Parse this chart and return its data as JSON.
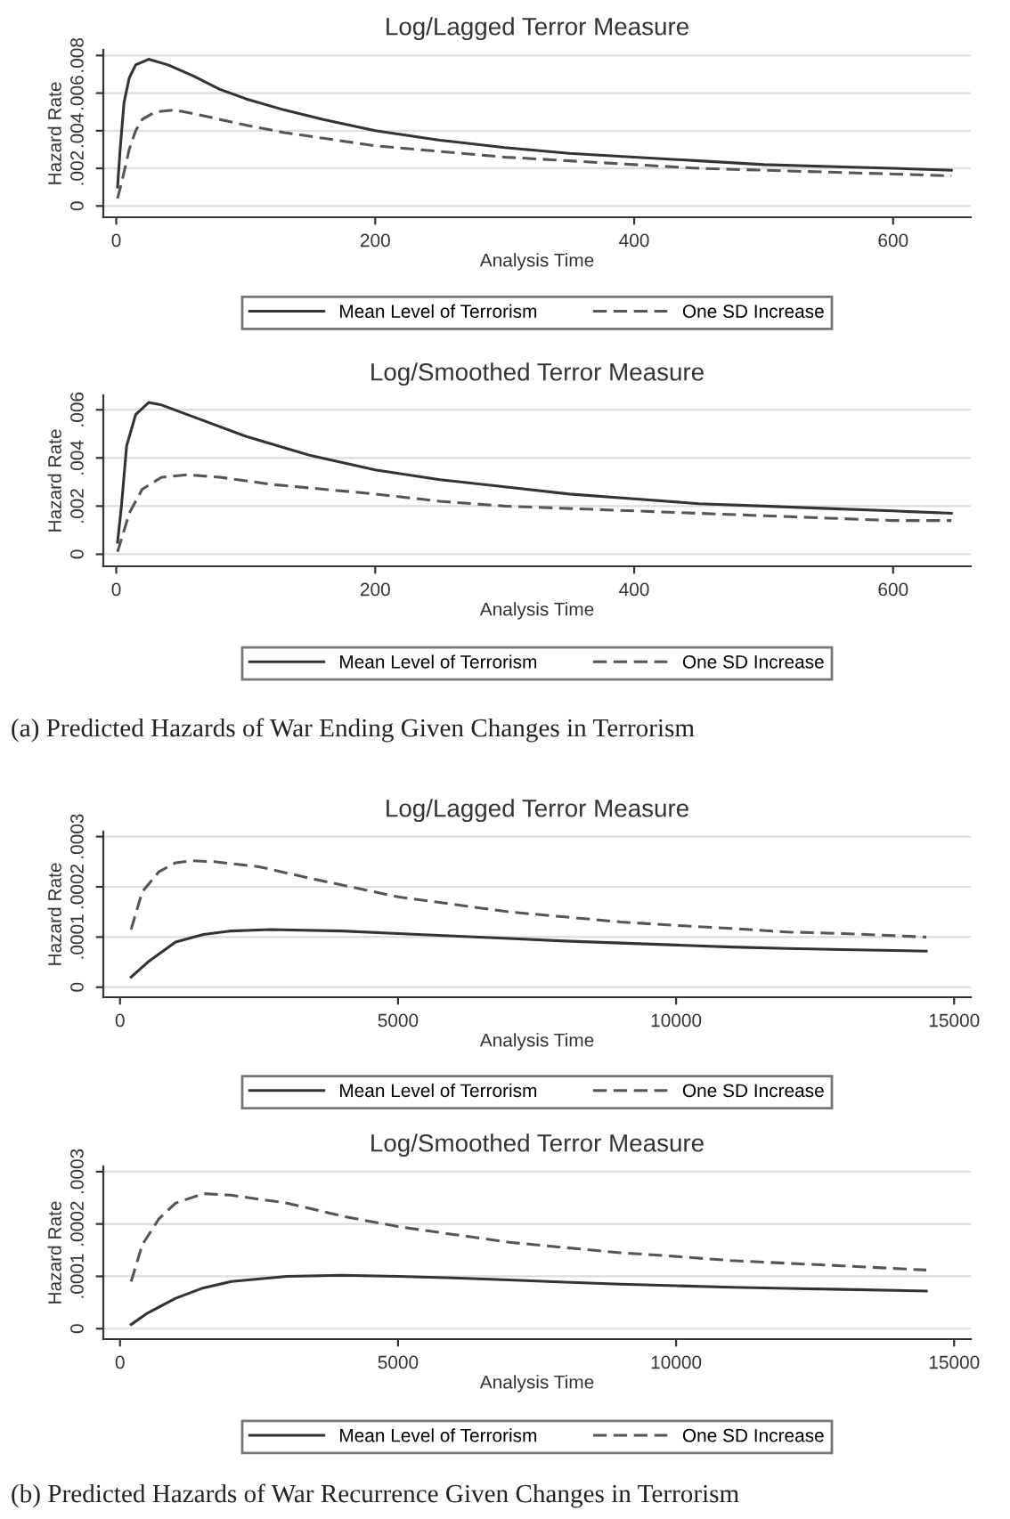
{
  "chart_data": [
    {
      "type": "line",
      "title": "Log/Lagged Terror Measure",
      "xlabel": "Analysis Time",
      "ylabel": "Hazard Rate",
      "xlim": [
        -10,
        660
      ],
      "xticks": [
        0,
        200,
        400,
        600
      ],
      "ylim": [
        -0.0006,
        0.0083
      ],
      "yticks": [
        0,
        {
          "value": 0.002,
          "label": ".002"
        },
        {
          "value": 0.004,
          "label": ".004"
        },
        {
          "value": 0.006,
          "label": ".006"
        },
        {
          "value": 0.008,
          "label": ".008"
        }
      ],
      "grid": "y",
      "legend": "bottom",
      "series": [
        {
          "name": "Mean Level of Terrorism",
          "color": "#333333",
          "line_style": "solid",
          "x": [
            1,
            3,
            6,
            10,
            15,
            25,
            40,
            60,
            80,
            100,
            130,
            160,
            200,
            250,
            300,
            350,
            400,
            450,
            500,
            550,
            600,
            645
          ],
          "values": [
            0.001,
            0.003,
            0.0055,
            0.0068,
            0.0075,
            0.0078,
            0.0075,
            0.0069,
            0.0062,
            0.0057,
            0.0051,
            0.0046,
            0.004,
            0.0035,
            0.0031,
            0.0028,
            0.0026,
            0.0024,
            0.0022,
            0.0021,
            0.002,
            0.0019
          ]
        },
        {
          "name": "One SD Increase",
          "color": "#555555",
          "line_style": "dashed",
          "x": [
            1,
            5,
            10,
            15,
            20,
            30,
            45,
            60,
            80,
            100,
            130,
            160,
            200,
            250,
            300,
            350,
            400,
            450,
            500,
            550,
            600,
            645
          ],
          "values": [
            0.0004,
            0.0015,
            0.003,
            0.004,
            0.0046,
            0.005,
            0.0051,
            0.0049,
            0.0046,
            0.0043,
            0.0039,
            0.0036,
            0.0032,
            0.0029,
            0.0026,
            0.0024,
            0.0022,
            0.002,
            0.0019,
            0.0018,
            0.0017,
            0.0016
          ]
        }
      ]
    },
    {
      "type": "line",
      "title": "Log/Smoothed Terror Measure",
      "xlabel": "Analysis Time",
      "ylabel": "Hazard Rate",
      "xlim": [
        -10,
        660
      ],
      "xticks": [
        0,
        200,
        400,
        600
      ],
      "ylim": [
        -0.0005,
        0.0066
      ],
      "yticks": [
        0,
        {
          "value": 0.002,
          "label": ".002"
        },
        {
          "value": 0.004,
          "label": ".004"
        },
        {
          "value": 0.006,
          "label": ".006"
        }
      ],
      "grid": "y",
      "legend": "bottom",
      "annotations": [
        "(a) Predicted Hazards of War Ending Given Changes in Terrorism"
      ],
      "series": [
        {
          "name": "Mean Level of Terrorism",
          "color": "#333333",
          "line_style": "solid",
          "x": [
            1,
            4,
            8,
            15,
            25,
            35,
            60,
            100,
            150,
            200,
            250,
            300,
            350,
            400,
            450,
            500,
            550,
            600,
            645
          ],
          "values": [
            0.0005,
            0.002,
            0.0045,
            0.0058,
            0.0063,
            0.0062,
            0.0057,
            0.0049,
            0.0041,
            0.0035,
            0.0031,
            0.0028,
            0.0025,
            0.0023,
            0.0021,
            0.002,
            0.0019,
            0.0018,
            0.0017
          ]
        },
        {
          "name": "One SD Increase",
          "color": "#555555",
          "line_style": "dashed",
          "x": [
            1,
            5,
            10,
            20,
            35,
            55,
            80,
            120,
            160,
            200,
            250,
            300,
            350,
            400,
            450,
            500,
            550,
            600,
            645
          ],
          "values": [
            0.0001,
            0.0008,
            0.0017,
            0.0027,
            0.0032,
            0.0033,
            0.0032,
            0.0029,
            0.0027,
            0.0025,
            0.0022,
            0.002,
            0.0019,
            0.0018,
            0.0017,
            0.0016,
            0.0015,
            0.0014,
            0.0014
          ]
        }
      ]
    },
    {
      "type": "line",
      "title": "Log/Lagged Terror Measure",
      "xlabel": "Analysis Time",
      "ylabel": "Hazard Rate",
      "xlim": [
        -300,
        15300
      ],
      "xticks": [
        0,
        5000,
        10000,
        15000
      ],
      "ylim": [
        -2e-05,
        0.00031
      ],
      "yticks": [
        0,
        {
          "value": 0.0001,
          "label": ".0001"
        },
        {
          "value": 0.0002,
          "label": ".0002"
        },
        {
          "value": 0.0003,
          "label": ".0003"
        }
      ],
      "grid": "y",
      "legend": "bottom",
      "series": [
        {
          "name": "Mean Level of Terrorism",
          "color": "#333333",
          "line_style": "solid",
          "x": [
            200,
            500,
            1000,
            1500,
            2000,
            2700,
            4000,
            5000,
            6000,
            7000,
            8000,
            9000,
            10000,
            11000,
            12000,
            13000,
            14500
          ],
          "values": [
            2e-05,
            5e-05,
            9e-05,
            0.000105,
            0.000112,
            0.000115,
            0.000112,
            0.000107,
            0.000102,
            9.7e-05,
            9.2e-05,
            8.8e-05,
            8.4e-05,
            8e-05,
            7.7e-05,
            7.5e-05,
            7.2e-05
          ]
        },
        {
          "name": "One SD Increase",
          "color": "#555555",
          "line_style": "dashed",
          "x": [
            200,
            400,
            700,
            1000,
            1300,
            1700,
            2500,
            3500,
            5000,
            6000,
            7000,
            8000,
            9000,
            10000,
            11000,
            12000,
            13000,
            14500
          ],
          "values": [
            0.000115,
            0.00019,
            0.00023,
            0.000248,
            0.000252,
            0.00025,
            0.00024,
            0.000215,
            0.00018,
            0.000165,
            0.00015,
            0.00014,
            0.00013,
            0.000123,
            0.000117,
            0.00011,
            0.000107,
            0.0001
          ]
        }
      ]
    },
    {
      "type": "line",
      "title": "Log/Smoothed Terror Measure",
      "xlabel": "Analysis Time",
      "ylabel": "Hazard Rate",
      "xlim": [
        -300,
        15300
      ],
      "xticks": [
        0,
        5000,
        10000,
        15000
      ],
      "ylim": [
        -2e-05,
        0.00031
      ],
      "yticks": [
        0,
        {
          "value": 0.0001,
          "label": ".0001"
        },
        {
          "value": 0.0002,
          "label": ".0002"
        },
        {
          "value": 0.0003,
          "label": ".0003"
        }
      ],
      "grid": "y",
      "legend": "bottom",
      "annotations": [
        "(b) Predicted Hazards of War Recurrence Given Changes in Terrorism"
      ],
      "series": [
        {
          "name": "Mean Level of Terrorism",
          "color": "#333333",
          "line_style": "solid",
          "x": [
            200,
            500,
            1000,
            1500,
            2000,
            3000,
            4000,
            5000,
            6000,
            7000,
            8000,
            9000,
            10000,
            11000,
            12000,
            13000,
            14500
          ],
          "values": [
            8e-06,
            3e-05,
            5.8e-05,
            7.8e-05,
            9e-05,
            0.0001,
            0.000102,
            0.0001,
            9.7e-05,
            9.3e-05,
            8.9e-05,
            8.5e-05,
            8.2e-05,
            7.9e-05,
            7.7e-05,
            7.5e-05,
            7.2e-05
          ]
        },
        {
          "name": "One SD Increase",
          "color": "#555555",
          "line_style": "dashed",
          "x": [
            200,
            400,
            700,
            1000,
            1500,
            2000,
            3000,
            4000,
            5000,
            6000,
            7000,
            8000,
            9000,
            10000,
            11000,
            12000,
            13000,
            14500
          ],
          "values": [
            9e-05,
            0.00016,
            0.00021,
            0.00024,
            0.000258,
            0.000255,
            0.00024,
            0.000215,
            0.000195,
            0.00018,
            0.000165,
            0.000155,
            0.000145,
            0.000138,
            0.00013,
            0.000125,
            0.00012,
            0.000112
          ]
        }
      ]
    }
  ]
}
